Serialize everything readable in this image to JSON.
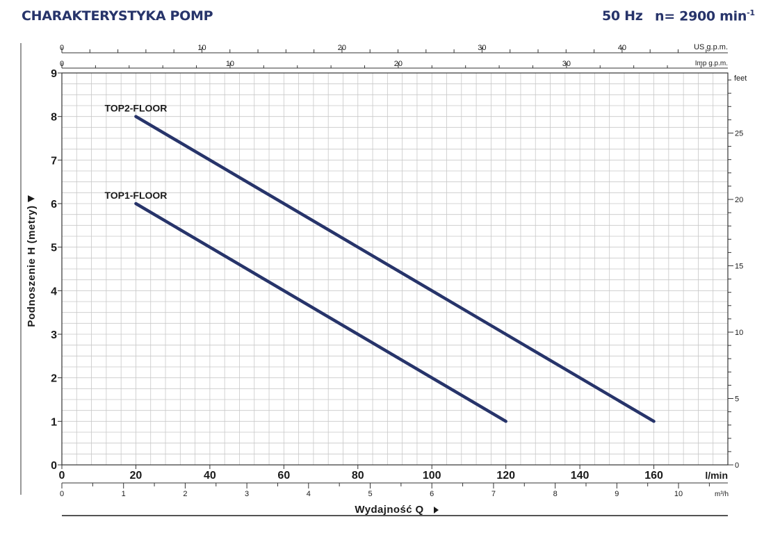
{
  "header": {
    "title": "CHARAKTERYSTYKA POMP",
    "frequency": "50 Hz",
    "speed_prefix": "n= 2900 min",
    "speed_exp": "-1"
  },
  "colors": {
    "curve": "#27346a",
    "header": "#27346a",
    "grid": "#c8c8c8"
  },
  "chart_data": {
    "type": "line",
    "title": "CHARAKTERYSTYKA POMP",
    "xlabel": "Wydajność Q",
    "ylabel": "Podnoszenie H (metry)",
    "x_unit": "l/min",
    "xlim": [
      0,
      180
    ],
    "ylim": [
      0,
      9
    ],
    "grid": true,
    "x_ticks": [
      0,
      20,
      40,
      60,
      80,
      100,
      120,
      140,
      160
    ],
    "y_ticks": [
      0,
      1,
      2,
      3,
      4,
      5,
      6,
      7,
      8,
      9
    ],
    "series": [
      {
        "name": "TOP2-FLOOR",
        "x": [
          20,
          160
        ],
        "y": [
          8,
          1
        ]
      },
      {
        "name": "TOP1-FLOOR",
        "x": [
          20,
          120
        ],
        "y": [
          6,
          1
        ]
      }
    ],
    "secondary_axes": {
      "us_gpm": {
        "label": "US g.p.m.",
        "ticks": [
          0,
          10,
          20,
          30,
          40
        ]
      },
      "imp_gpm": {
        "label": "Imp g.p.m.",
        "ticks": [
          0,
          10,
          20,
          30
        ]
      },
      "m3h": {
        "label": "m³/h",
        "ticks": [
          0,
          1,
          2,
          3,
          4,
          5,
          6,
          7,
          8,
          9,
          10
        ]
      },
      "feet": {
        "label": "feet",
        "ticks": [
          0,
          5,
          10,
          15,
          20,
          25
        ]
      }
    }
  }
}
